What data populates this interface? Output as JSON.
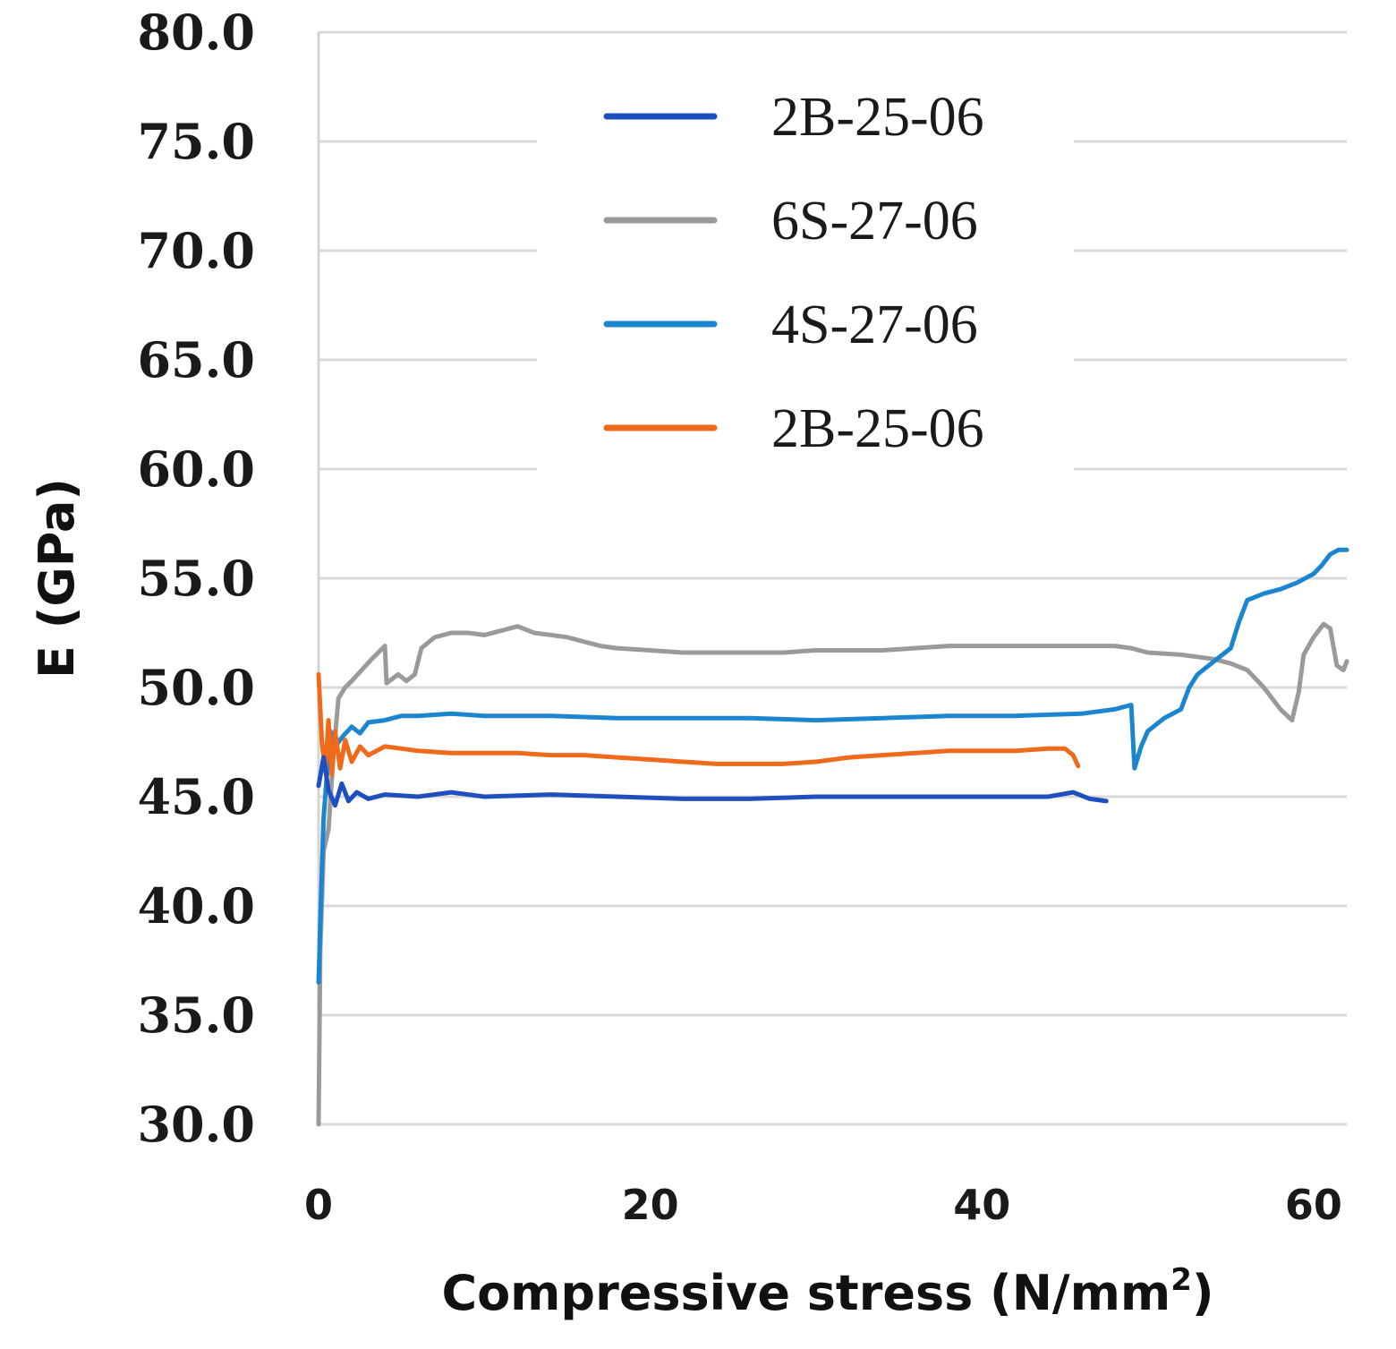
{
  "chart_data": {
    "type": "line",
    "title": "",
    "xlabel": "Compressive stress (N/mm",
    "xlabel_sup": "2",
    "xlabel_close": ")",
    "ylabel": "E (GPa)",
    "xlim": [
      0,
      62
    ],
    "ylim": [
      30,
      80
    ],
    "x_ticks": [
      0,
      20,
      40,
      60
    ],
    "x_tick_labels": [
      "0",
      "20",
      "40",
      "60"
    ],
    "y_ticks": [
      30,
      35,
      40,
      45,
      50,
      55,
      60,
      65,
      70,
      75,
      80
    ],
    "y_tick_labels": [
      "30.0",
      "35.0",
      "40.0",
      "45.0",
      "50.0",
      "55.0",
      "60.0",
      "65.0",
      "70.0",
      "75.0",
      "80.0"
    ],
    "grid": "horizontal",
    "legend_position": "top-center",
    "series": [
      {
        "name": "2B-25-06",
        "color": "#1f4fbf",
        "points": [
          [
            0,
            45.5
          ],
          [
            0.3,
            46.8
          ],
          [
            0.6,
            45.3
          ],
          [
            1.0,
            44.6
          ],
          [
            1.4,
            45.6
          ],
          [
            1.8,
            44.8
          ],
          [
            2.3,
            45.2
          ],
          [
            3,
            44.9
          ],
          [
            4,
            45.1
          ],
          [
            6,
            45.0
          ],
          [
            8,
            45.2
          ],
          [
            10,
            45.0
          ],
          [
            14,
            45.1
          ],
          [
            18,
            45.0
          ],
          [
            22,
            44.9
          ],
          [
            26,
            44.9
          ],
          [
            30,
            45.0
          ],
          [
            34,
            45.0
          ],
          [
            38,
            45.0
          ],
          [
            42,
            45.0
          ],
          [
            44,
            45.0
          ],
          [
            45.5,
            45.2
          ],
          [
            46.5,
            44.9
          ],
          [
            47.5,
            44.8
          ]
        ]
      },
      {
        "name": "6S-27-06",
        "color": "#9a9a9a",
        "points": [
          [
            0,
            30.0
          ],
          [
            0.1,
            38.0
          ],
          [
            0.3,
            42.5
          ],
          [
            0.6,
            43.5
          ],
          [
            0.9,
            47.0
          ],
          [
            1.2,
            49.5
          ],
          [
            1.6,
            50.0
          ],
          [
            2.0,
            50.3
          ],
          [
            2.6,
            50.8
          ],
          [
            3.2,
            51.3
          ],
          [
            3.6,
            51.6
          ],
          [
            4.0,
            51.9
          ],
          [
            4.1,
            50.2
          ],
          [
            4.8,
            50.6
          ],
          [
            5.3,
            50.3
          ],
          [
            5.8,
            50.6
          ],
          [
            6.2,
            51.8
          ],
          [
            7,
            52.3
          ],
          [
            8,
            52.5
          ],
          [
            9,
            52.5
          ],
          [
            10,
            52.4
          ],
          [
            11,
            52.6
          ],
          [
            12,
            52.8
          ],
          [
            13,
            52.5
          ],
          [
            14,
            52.4
          ],
          [
            15,
            52.3
          ],
          [
            16,
            52.1
          ],
          [
            17,
            51.9
          ],
          [
            18,
            51.8
          ],
          [
            20,
            51.7
          ],
          [
            22,
            51.6
          ],
          [
            24,
            51.6
          ],
          [
            26,
            51.6
          ],
          [
            28,
            51.6
          ],
          [
            30,
            51.7
          ],
          [
            34,
            51.7
          ],
          [
            38,
            51.9
          ],
          [
            42,
            51.9
          ],
          [
            46,
            51.9
          ],
          [
            48,
            51.9
          ],
          [
            49,
            51.8
          ],
          [
            50,
            51.6
          ],
          [
            52,
            51.5
          ],
          [
            54,
            51.3
          ],
          [
            55,
            51.1
          ],
          [
            56,
            50.8
          ],
          [
            57,
            50.0
          ],
          [
            58,
            49.0
          ],
          [
            58.7,
            48.5
          ],
          [
            59.1,
            49.8
          ],
          [
            59.4,
            51.5
          ],
          [
            60,
            52.3
          ],
          [
            60.6,
            52.9
          ],
          [
            61,
            52.7
          ],
          [
            61.4,
            51.0
          ],
          [
            61.8,
            50.8
          ],
          [
            62,
            51.2
          ]
        ]
      },
      {
        "name": "4S-27-06",
        "color": "#1b86cf",
        "points": [
          [
            0,
            36.5
          ],
          [
            0.15,
            40.5
          ],
          [
            0.3,
            44.0
          ],
          [
            0.5,
            46.0
          ],
          [
            0.7,
            48.0
          ],
          [
            1.0,
            47.3
          ],
          [
            1.5,
            47.8
          ],
          [
            2.0,
            48.2
          ],
          [
            2.5,
            47.9
          ],
          [
            3,
            48.4
          ],
          [
            4,
            48.5
          ],
          [
            5,
            48.7
          ],
          [
            6,
            48.7
          ],
          [
            8,
            48.8
          ],
          [
            10,
            48.7
          ],
          [
            14,
            48.7
          ],
          [
            18,
            48.6
          ],
          [
            22,
            48.6
          ],
          [
            26,
            48.6
          ],
          [
            30,
            48.5
          ],
          [
            34,
            48.6
          ],
          [
            38,
            48.7
          ],
          [
            42,
            48.7
          ],
          [
            46,
            48.8
          ],
          [
            48,
            49.0
          ],
          [
            49,
            49.2
          ],
          [
            49.2,
            46.3
          ],
          [
            49.6,
            47.3
          ],
          [
            50,
            48.0
          ],
          [
            51,
            48.6
          ],
          [
            52,
            49.0
          ],
          [
            52.5,
            50.0
          ],
          [
            53,
            50.6
          ],
          [
            54,
            51.2
          ],
          [
            55,
            51.8
          ],
          [
            55.5,
            53.0
          ],
          [
            56,
            54.0
          ],
          [
            57,
            54.3
          ],
          [
            58,
            54.5
          ],
          [
            59,
            54.8
          ],
          [
            60,
            55.2
          ],
          [
            60.5,
            55.6
          ],
          [
            61,
            56.1
          ],
          [
            61.5,
            56.3
          ],
          [
            62,
            56.3
          ]
        ]
      },
      {
        "name": "2B-25-06",
        "color": "#f06a1c",
        "points": [
          [
            0,
            50.6
          ],
          [
            0.2,
            47.5
          ],
          [
            0.4,
            46.2
          ],
          [
            0.6,
            48.5
          ],
          [
            0.8,
            46.0
          ],
          [
            1.0,
            48.0
          ],
          [
            1.3,
            46.3
          ],
          [
            1.6,
            47.6
          ],
          [
            2.0,
            46.6
          ],
          [
            2.5,
            47.3
          ],
          [
            3,
            46.9
          ],
          [
            4,
            47.3
          ],
          [
            5,
            47.2
          ],
          [
            6,
            47.1
          ],
          [
            8,
            47.0
          ],
          [
            10,
            47.0
          ],
          [
            12,
            47.0
          ],
          [
            14,
            46.9
          ],
          [
            16,
            46.9
          ],
          [
            18,
            46.8
          ],
          [
            20,
            46.7
          ],
          [
            22,
            46.6
          ],
          [
            24,
            46.5
          ],
          [
            26,
            46.5
          ],
          [
            28,
            46.5
          ],
          [
            30,
            46.6
          ],
          [
            32,
            46.8
          ],
          [
            34,
            46.9
          ],
          [
            36,
            47.0
          ],
          [
            38,
            47.1
          ],
          [
            40,
            47.1
          ],
          [
            42,
            47.1
          ],
          [
            44,
            47.2
          ],
          [
            45,
            47.2
          ],
          [
            45.5,
            46.9
          ],
          [
            45.8,
            46.4
          ]
        ]
      }
    ]
  }
}
